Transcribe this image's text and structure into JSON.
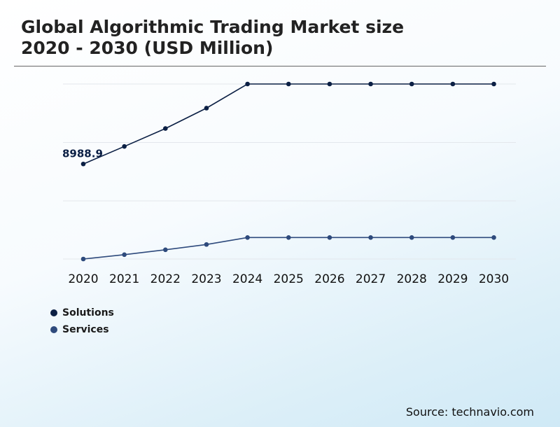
{
  "title": {
    "line1": "Global Algorithmic Trading Market size",
    "line2": "2020 - 2030 (USD Million)"
  },
  "source": "Source: technavio.com",
  "chart_data": {
    "type": "line",
    "title": "Global Algorithmic Trading Market size 2020 - 2030 (USD Million)",
    "x": [
      "2020",
      "2021",
      "2022",
      "2023",
      "2024",
      "2025",
      "2026",
      "2027",
      "2028",
      "2029",
      "2030"
    ],
    "series": [
      {
        "name": "Solutions",
        "color": "#0b1f44",
        "values": [
          8988.9,
          9920,
          10870,
          11950,
          13230,
          13230,
          13230,
          13230,
          13230,
          13230,
          13230
        ]
      },
      {
        "name": "Services",
        "color": "#2e4a7c",
        "values": [
          3950,
          4180,
          4440,
          4720,
          5090,
          5090,
          5090,
          5090,
          5090,
          5090,
          5090
        ]
      }
    ],
    "data_labels": [
      {
        "series": 0,
        "index": 0,
        "text": "8988.9"
      }
    ],
    "ylim": [
      3950,
      13230
    ],
    "grid": true,
    "y_tick_labels_visible": false,
    "legend_position": "bottom-left"
  }
}
